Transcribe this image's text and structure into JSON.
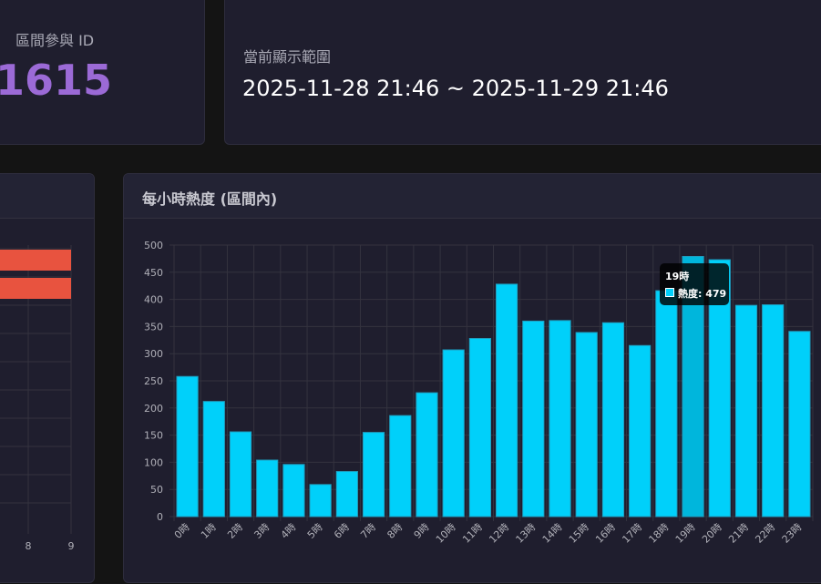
{
  "participant_card": {
    "label": "區間參與 ID",
    "value": "1615"
  },
  "range_card": {
    "label": "當前顯示範圍",
    "value": "2025-11-28 21:46 ~ 2025-11-29 21:46"
  },
  "left_chart": {
    "type": "bar",
    "orientation": "horizontal",
    "x_ticks": [
      "8",
      "9"
    ],
    "values": [
      9,
      9
    ],
    "color": "#e8533f"
  },
  "hourly_card": {
    "title": "每小時熱度 (區間內)"
  },
  "chart_data": {
    "type": "bar",
    "title": "每小時熱度 (區間內)",
    "categories": [
      "0時",
      "1時",
      "2時",
      "3時",
      "4時",
      "5時",
      "6時",
      "7時",
      "8時",
      "9時",
      "10時",
      "11時",
      "12時",
      "13時",
      "14時",
      "15時",
      "16時",
      "17時",
      "18時",
      "19時",
      "20時",
      "21時",
      "22時",
      "23時"
    ],
    "series": [
      {
        "name": "熱度",
        "values": [
          258,
          212,
          156,
          104,
          96,
          59,
          83,
          155,
          186,
          228,
          307,
          328,
          428,
          360,
          361,
          339,
          357,
          315,
          416,
          479,
          473,
          389,
          390,
          341
        ]
      }
    ],
    "ylim": [
      0,
      500
    ],
    "y_ticks": [
      0,
      50,
      100,
      150,
      200,
      250,
      300,
      350,
      400,
      450,
      500
    ],
    "grid": true,
    "color": "#00d0fa",
    "hover_color": "#00b6dc"
  },
  "tooltip": {
    "title": "19時",
    "label": "熱度: 479"
  }
}
